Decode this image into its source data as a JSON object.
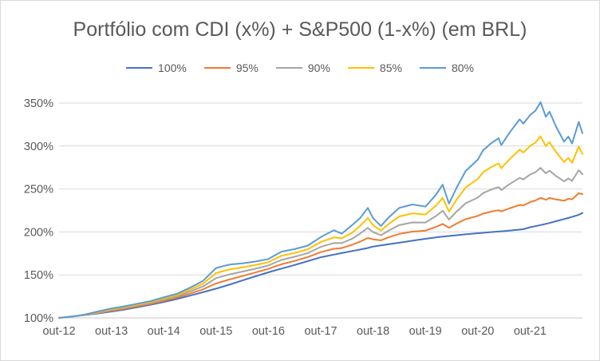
{
  "chart": {
    "background": "#ffffff",
    "border_color": "#d9d9d9",
    "text_color": "#595959",
    "gridline_color": "#d9d9d9",
    "axis_line_color": "#c9c9c9"
  },
  "chart_data": {
    "type": "line",
    "title": "Portfólio com CDI (x%) + S&P500 (1-x%) (em BRL)",
    "legend_position": "top",
    "grid": "horizontal",
    "ylim": [
      100,
      350
    ],
    "y_ticks": [
      350,
      300,
      250,
      200,
      150,
      100
    ],
    "y_tick_suffix": "%",
    "x_tick_labels": [
      "out-12",
      "out-13",
      "out-14",
      "out-15",
      "out-16",
      "out-17",
      "out-18",
      "out-19",
      "out-20",
      "out-21"
    ],
    "x_unit": "years since out-12 (data extends ~1 year past out-21)",
    "x": [
      0,
      0.25,
      0.5,
      0.75,
      1,
      1.25,
      1.5,
      1.75,
      2,
      2.25,
      2.5,
      2.75,
      3,
      3.25,
      3.5,
      3.75,
      4,
      4.1,
      4.25,
      4.5,
      4.75,
      5,
      5.25,
      5.4,
      5.6,
      5.75,
      5.9,
      6,
      6.15,
      6.3,
      6.5,
      6.75,
      7,
      7.2,
      7.33,
      7.45,
      7.6,
      7.77,
      8,
      8.1,
      8.25,
      8.4,
      8.45,
      8.6,
      8.8,
      8.87,
      9,
      9.1,
      9.2,
      9.3,
      9.37,
      9.5,
      9.65,
      9.73,
      9.8,
      9.93,
      10
    ],
    "series": [
      {
        "name": "100%",
        "color": "#4472C4",
        "values": [
          100,
          101.6,
          103.3,
          105.2,
          107.3,
          109.7,
          112.4,
          115.3,
          118.4,
          121.9,
          125.8,
          129.8,
          134,
          138.6,
          143.5,
          148.3,
          153,
          154.8,
          157.3,
          161.5,
          166,
          170.5,
          173.6,
          175.4,
          177.8,
          179.5,
          181.3,
          183,
          184.4,
          185.8,
          187.5,
          189.8,
          192,
          193.6,
          194.6,
          195.3,
          196.2,
          197.2,
          198.5,
          199,
          199.8,
          200.5,
          200.7,
          201.5,
          202.7,
          203.2,
          205.5,
          206.7,
          208,
          209.4,
          210.4,
          212.5,
          215,
          216.3,
          217.5,
          220,
          222
        ]
      },
      {
        "name": "95%",
        "color": "#ED7D31",
        "values": [
          100,
          101.6,
          103.5,
          105.8,
          108.3,
          110.7,
          113.5,
          116.4,
          119.9,
          123.5,
          128.2,
          133.2,
          140.1,
          144.6,
          148.6,
          152.8,
          157,
          159.3,
          162.4,
          166.3,
          170.7,
          176.5,
          180.4,
          181.2,
          185,
          188.7,
          192.9,
          191.4,
          190.2,
          193.8,
          197.7,
          200.4,
          201.5,
          205.9,
          209.3,
          204.8,
          209.9,
          214.9,
          218.7,
          221.3,
          223.6,
          225.3,
          223.9,
          227.3,
          231.4,
          230.9,
          234.7,
          236.6,
          239.6,
          237.5,
          239.5,
          237.7,
          236.3,
          238.6,
          237.9,
          245.1,
          244
        ]
      },
      {
        "name": "90%",
        "color": "#A5A5A5",
        "values": [
          100,
          101.5,
          103.7,
          106.4,
          109.2,
          111.7,
          114.6,
          117.5,
          121.3,
          125.1,
          130.6,
          136.6,
          146.2,
          150.5,
          153.8,
          157.2,
          161,
          163.7,
          167.4,
          171.1,
          175.3,
          182.6,
          187.1,
          187,
          192.2,
          198,
          204.7,
          199.8,
          196.1,
          201.7,
          208,
          211.1,
          211,
          218.4,
          224.6,
          214.4,
          224,
          233.4,
          240,
          245.2,
          249.2,
          252.2,
          248.8,
          255.4,
          262.9,
          261.1,
          266.7,
          269.5,
          274.5,
          268.2,
          271.3,
          264.9,
          258.8,
          262.2,
          259.3,
          271.9,
          267.2
        ]
      },
      {
        "name": "85%",
        "color": "#FFC000",
        "values": [
          100,
          101.5,
          103.8,
          107,
          110.1,
          112.6,
          115.5,
          118.5,
          122.7,
          126.6,
          132.8,
          139.9,
          152.1,
          156.3,
          158.7,
          161.4,
          164.8,
          167.9,
          172.3,
          175.6,
          179.7,
          188.3,
          193.6,
          192.6,
          199.1,
          207,
          216.3,
          207.9,
          201.6,
          209.4,
          218,
          221.5,
          220.3,
          230.6,
          239.6,
          223.7,
          237.9,
          251.9,
          261.5,
          269.4,
          275.3,
          279.7,
          274.2,
          284.2,
          295.7,
          292.4,
          300.1,
          303.9,
          311.2,
          299.9,
          304.4,
          292.6,
          281.4,
          286.1,
          280.7,
          299.2,
          290.6
        ]
      },
      {
        "name": "80%",
        "color": "#5B9BD5",
        "values": [
          100,
          101.5,
          104,
          107.5,
          111,
          113.5,
          116.5,
          119.5,
          124,
          128,
          135,
          143,
          158,
          162,
          163.5,
          165.5,
          168.5,
          172,
          177,
          180,
          184,
          194,
          202,
          198,
          208,
          216,
          228,
          216,
          207,
          217,
          228,
          232,
          229.5,
          243,
          255,
          233,
          252,
          271,
          284,
          295,
          303,
          309,
          301,
          315,
          331,
          326,
          336,
          341,
          351,
          334,
          340,
          322,
          305,
          311,
          303,
          328,
          315
        ]
      }
    ]
  }
}
